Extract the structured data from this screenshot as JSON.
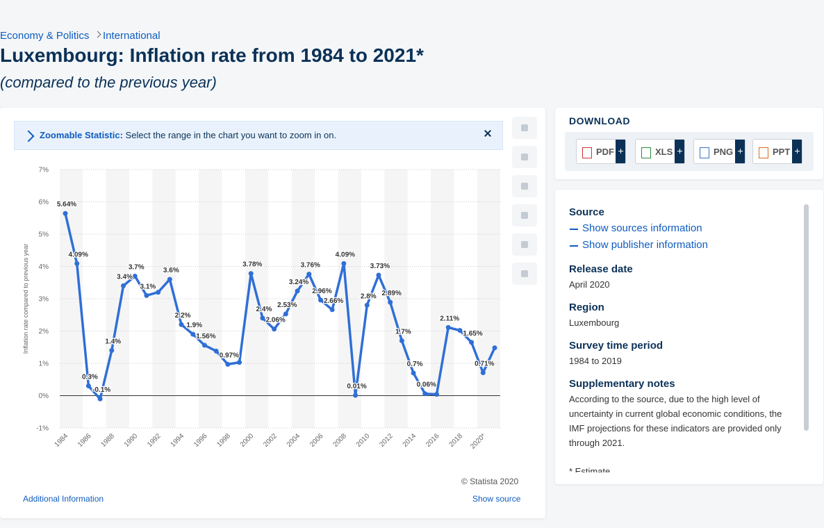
{
  "breadcrumb": [
    "Economy & Politics",
    "International"
  ],
  "title": "Luxembourg: Inflation rate from 1984 to 2021*",
  "subtitle": "(compared to the previous year)",
  "zoom": {
    "label": "Zoomable Statistic:",
    "text": "Select the range in the chart you want to zoom in on."
  },
  "copyright": "© Statista 2020",
  "additional_info": "Additional Information",
  "show_source": "Show source",
  "download": {
    "title": "DOWNLOAD",
    "buttons": [
      "PDF",
      "XLS",
      "PNG",
      "PPT"
    ]
  },
  "details": {
    "source": {
      "heading": "Source",
      "links": [
        "Show sources information",
        "Show publisher information"
      ]
    },
    "release": {
      "heading": "Release date",
      "text": "April 2020"
    },
    "region": {
      "heading": "Region",
      "text": "Luxembourg"
    },
    "period": {
      "heading": "Survey time period",
      "text": "1984 to 2019"
    },
    "notes": {
      "heading": "Supplementary notes",
      "text": "According to the source, due to the high level of uncertainty in current global economic conditions, the IMF projections for these indicators are provided only through 2021."
    },
    "footnote": "* Estimate"
  },
  "chart_data": {
    "type": "line",
    "y_axis_label": "Inflation rate compared to previous year",
    "categories": [
      "1984",
      null,
      "1986",
      null,
      "1988",
      null,
      "1990",
      null,
      "1992",
      null,
      "1994",
      null,
      "1996",
      null,
      "1998",
      null,
      "2000",
      null,
      "2002",
      null,
      "2004",
      null,
      "2006",
      null,
      "2008",
      null,
      "2010",
      null,
      "2012",
      null,
      "2014",
      null,
      "2016",
      null,
      "2018",
      null,
      "2020*",
      null
    ],
    "values": [
      5.64,
      4.09,
      0.3,
      -0.1,
      1.4,
      3.4,
      3.7,
      3.1,
      3.2,
      3.6,
      2.2,
      1.9,
      1.56,
      1.38,
      0.97,
      1.03,
      3.78,
      2.4,
      2.06,
      2.53,
      3.24,
      3.76,
      2.96,
      2.66,
      4.09,
      0.01,
      2.8,
      3.73,
      2.89,
      1.7,
      0.7,
      0.06,
      0.04,
      2.11,
      2.02,
      1.65,
      0.71,
      1.48
    ],
    "value_labels": [
      "5.64%",
      "4.09%",
      "0.3%",
      "-0.1%",
      "1.4%",
      "3.4%",
      "3.7%",
      "3.1%",
      null,
      "3.6%",
      "2.2%",
      "1.9%",
      "1.56%",
      null,
      "0.97%",
      null,
      "3.78%",
      "2.4%",
      "2.06%",
      "2.53%",
      "3.24%",
      "3.76%",
      "2.96%",
      "2.66%",
      "4.09%",
      "0.01%",
      "2.8%",
      "3.73%",
      "2.89%",
      "1.7%",
      "0.7%",
      "0.06%",
      null,
      "2.11%",
      null,
      "1.65%",
      "0.71%",
      null
    ],
    "color": "#2f6fd6",
    "ylim": [
      -1,
      7
    ],
    "yticks": [
      {
        "value": -1,
        "label": "-1%"
      },
      {
        "value": 0,
        "label": "0%"
      },
      {
        "value": 1,
        "label": "1%"
      },
      {
        "value": 2,
        "label": "2%"
      },
      {
        "value": 3,
        "label": "3%"
      },
      {
        "value": 4,
        "label": "4%"
      },
      {
        "value": 5,
        "label": "5%"
      },
      {
        "value": 6,
        "label": "6%"
      },
      {
        "value": 7,
        "label": "7%"
      }
    ],
    "grid": true
  }
}
